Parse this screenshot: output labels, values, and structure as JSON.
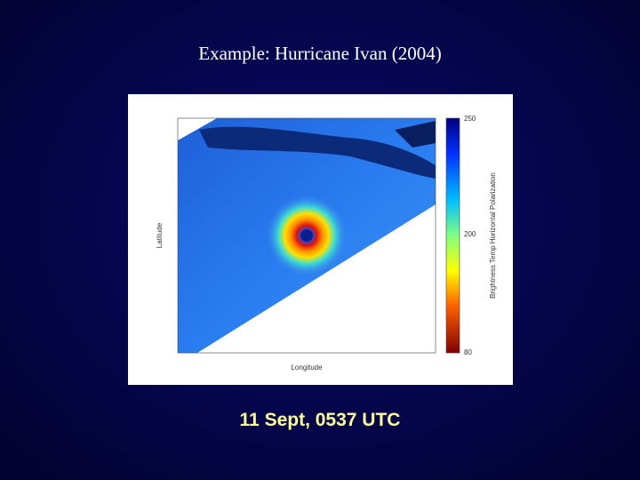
{
  "slide": {
    "title": "Example: Hurricane Ivan (2004)",
    "caption": "11 Sept, 0537 UTC"
  },
  "figure": {
    "y_label": "Latitude",
    "x_label": "Longitude",
    "colorbar_label": "Brightness Temp Horizontal Polarization",
    "colorbar_ticks": [
      "250",
      "200",
      "80"
    ]
  }
}
